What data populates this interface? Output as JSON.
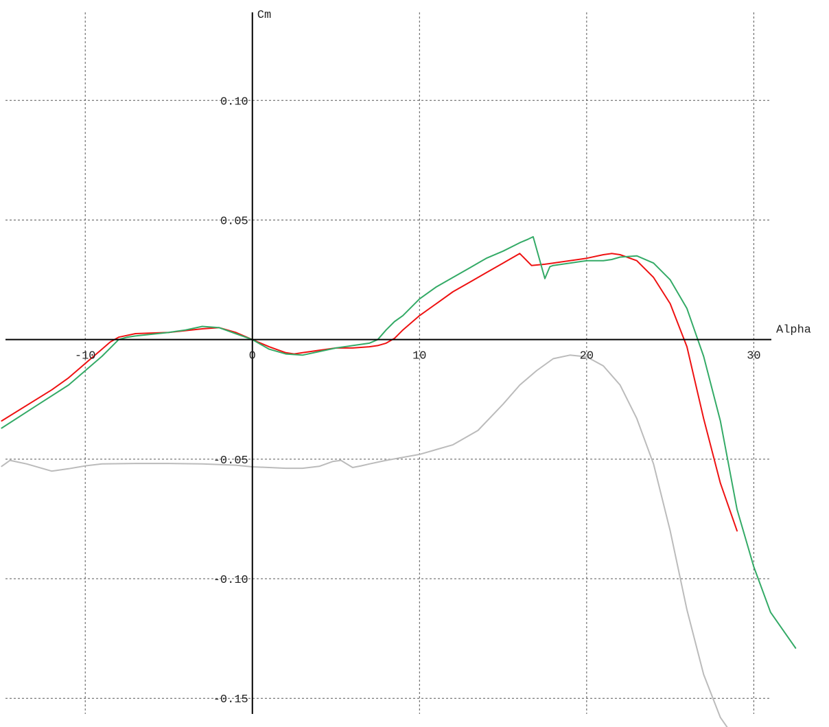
{
  "chart_data": {
    "type": "line",
    "xlabel": "Alpha",
    "ylabel": "Cm",
    "xlim": [
      -15.1,
      34.5
    ],
    "ylim": [
      -0.162,
      0.142
    ],
    "grid": true,
    "x_ticks": [
      -10,
      0,
      10,
      20,
      30
    ],
    "x_tick_labels": [
      "-10",
      "0",
      "10",
      "20",
      "30"
    ],
    "y_ticks": [
      0.1,
      0.05,
      -0.05,
      -0.1,
      -0.15
    ],
    "y_tick_labels": [
      "0.10",
      "0.05",
      "-0.05",
      "-0.10",
      "-0.15"
    ],
    "series": [
      {
        "color": "#ee1111",
        "x": [
          -15,
          -12,
          -11,
          -10,
          -9,
          -8.5,
          -8,
          -7,
          -5,
          -3,
          -2,
          -1,
          0,
          1,
          2,
          2.5,
          3,
          4,
          5,
          6,
          7,
          7.5,
          8,
          8.5,
          9,
          10,
          11,
          12,
          13,
          14,
          15,
          16,
          16.7,
          17.5,
          18,
          19,
          20,
          21,
          21.5,
          22,
          23,
          24,
          25,
          26,
          27,
          28,
          29
        ],
        "y": [
          -0.034,
          -0.021,
          -0.016,
          -0.01,
          -0.004,
          -0.001,
          0.001,
          0.0025,
          0.003,
          0.0045,
          0.005,
          0.003,
          0.0,
          -0.003,
          -0.0055,
          -0.006,
          -0.0055,
          -0.0045,
          -0.0035,
          -0.0035,
          -0.003,
          -0.0025,
          -0.0015,
          0.0005,
          0.004,
          0.01,
          0.015,
          0.02,
          0.024,
          0.028,
          0.032,
          0.036,
          0.031,
          0.0315,
          0.032,
          0.033,
          0.034,
          0.0355,
          0.036,
          0.0355,
          0.033,
          0.026,
          0.015,
          -0.003,
          -0.033,
          -0.06,
          -0.08
        ]
      },
      {
        "color": "#33aa66",
        "x": [
          -15,
          -13,
          -11,
          -10,
          -9,
          -8,
          -7.5,
          -7,
          -5,
          -4,
          -3,
          -2,
          -1,
          0,
          1,
          2,
          3,
          4,
          5,
          6,
          7,
          7.5,
          8,
          8.5,
          9,
          10,
          11,
          12,
          13,
          14,
          15,
          16,
          16.5,
          16.8,
          17.5,
          17.8,
          18,
          19,
          20,
          21,
          21.5,
          22,
          23,
          24,
          25,
          26,
          27,
          28,
          29,
          30,
          31,
          32,
          32.5
        ],
        "y": [
          -0.037,
          -0.028,
          -0.019,
          -0.013,
          -0.007,
          0.0,
          0.001,
          0.0015,
          0.003,
          0.004,
          0.0055,
          0.005,
          0.0025,
          0.0,
          -0.004,
          -0.006,
          -0.0065,
          -0.005,
          -0.0035,
          -0.0025,
          -0.0015,
          0.0,
          0.004,
          0.0075,
          0.01,
          0.017,
          0.022,
          0.026,
          0.03,
          0.034,
          0.037,
          0.0405,
          0.042,
          0.043,
          0.0255,
          0.0305,
          0.031,
          0.032,
          0.033,
          0.033,
          0.0335,
          0.0345,
          0.035,
          0.032,
          0.025,
          0.013,
          -0.007,
          -0.034,
          -0.071,
          -0.095,
          -0.114,
          -0.124,
          -0.129
        ]
      },
      {
        "color": "#bbbbbb",
        "x": [
          -15,
          -14.5,
          -13.5,
          -12,
          -11,
          -10,
          -9,
          -7,
          -5,
          -3,
          -1,
          0,
          1,
          2,
          3,
          4,
          4.8,
          5.3,
          6,
          6.5,
          7,
          8,
          10,
          12,
          13.5,
          15,
          16,
          17,
          18,
          19,
          20,
          21,
          22,
          23,
          24,
          25,
          26,
          27,
          28,
          29
        ],
        "y": [
          -0.053,
          -0.0505,
          -0.052,
          -0.055,
          -0.054,
          -0.0528,
          -0.052,
          -0.0518,
          -0.0518,
          -0.052,
          -0.0525,
          -0.0532,
          -0.0535,
          -0.0538,
          -0.0538,
          -0.053,
          -0.051,
          -0.0505,
          -0.0535,
          -0.0528,
          -0.052,
          -0.0505,
          -0.048,
          -0.044,
          -0.038,
          -0.027,
          -0.019,
          -0.013,
          -0.008,
          -0.0065,
          -0.0072,
          -0.011,
          -0.019,
          -0.033,
          -0.052,
          -0.08,
          -0.113,
          -0.14,
          -0.158,
          -0.168
        ]
      }
    ]
  }
}
